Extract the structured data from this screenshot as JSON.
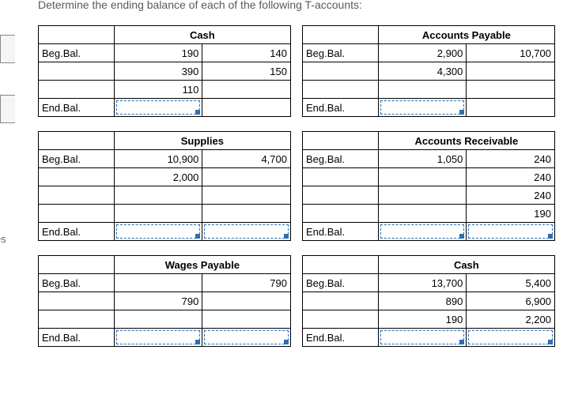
{
  "instruction_text": "Determine the ending balance of each of the following T-accounts:",
  "side_label": "es",
  "colors": {
    "header_bg": "#4e95d9",
    "border": "#000000",
    "entry_border": "#2b6fb5"
  },
  "accounts": [
    {
      "title": "Cash",
      "col_widths": [
        "30%",
        "35%",
        "35%"
      ],
      "rows": [
        {
          "label": "Beg.Bal.",
          "debit": "190",
          "credit": "140",
          "entry": []
        },
        {
          "label": "",
          "debit": "390",
          "credit": "150",
          "entry": []
        },
        {
          "label": "",
          "debit": "110",
          "credit": "",
          "entry": []
        },
        {
          "label": "End.Bal.",
          "debit": "",
          "credit": "",
          "entry": [
            "debit"
          ]
        }
      ]
    },
    {
      "title": "Accounts Payable",
      "col_widths": [
        "30%",
        "35%",
        "35%"
      ],
      "rows": [
        {
          "label": "Beg.Bal.",
          "debit": "2,900",
          "credit": "10,700",
          "entry": []
        },
        {
          "label": "",
          "debit": "4,300",
          "credit": "",
          "entry": []
        },
        {
          "label": "",
          "debit": "",
          "credit": "",
          "entry": []
        },
        {
          "label": "End.Bal.",
          "debit": "",
          "credit": "",
          "entry": [
            "debit"
          ]
        }
      ]
    },
    {
      "title": "Supplies",
      "col_widths": [
        "30%",
        "35%",
        "35%"
      ],
      "rows": [
        {
          "label": "Beg.Bal.",
          "debit": "10,900",
          "credit": "4,700",
          "entry": []
        },
        {
          "label": "",
          "debit": "2,000",
          "credit": "",
          "entry": []
        },
        {
          "label": "",
          "debit": "",
          "credit": "",
          "entry": []
        },
        {
          "label": "",
          "debit": "",
          "credit": "",
          "entry": []
        },
        {
          "label": "End.Bal.",
          "debit": "",
          "credit": "",
          "entry": [
            "debit",
            "credit"
          ]
        }
      ]
    },
    {
      "title": "Accounts Receivable",
      "col_widths": [
        "30%",
        "35%",
        "35%"
      ],
      "rows": [
        {
          "label": "Beg.Bal.",
          "debit": "1,050",
          "credit": "240",
          "entry": []
        },
        {
          "label": "",
          "debit": "",
          "credit": "240",
          "entry": []
        },
        {
          "label": "",
          "debit": "",
          "credit": "240",
          "entry": []
        },
        {
          "label": "",
          "debit": "",
          "credit": "190",
          "entry": []
        },
        {
          "label": "End.Bal.",
          "debit": "",
          "credit": "",
          "entry": [
            "debit",
            "credit"
          ]
        }
      ]
    },
    {
      "title": "Wages Payable",
      "col_widths": [
        "30%",
        "35%",
        "35%"
      ],
      "rows": [
        {
          "label": "Beg.Bal.",
          "debit": "",
          "credit": "790",
          "entry": []
        },
        {
          "label": "",
          "debit": "790",
          "credit": "",
          "entry": []
        },
        {
          "label": "",
          "debit": "",
          "credit": "",
          "entry": []
        },
        {
          "label": "End.Bal.",
          "debit": "",
          "credit": "",
          "entry": [
            "debit",
            "credit"
          ]
        }
      ]
    },
    {
      "title": "Cash",
      "col_widths": [
        "30%",
        "35%",
        "35%"
      ],
      "rows": [
        {
          "label": "Beg.Bal.",
          "debit": "13,700",
          "credit": "5,400",
          "entry": []
        },
        {
          "label": "",
          "debit": "890",
          "credit": "6,900",
          "entry": []
        },
        {
          "label": "",
          "debit": "190",
          "credit": "2,200",
          "entry": []
        },
        {
          "label": "End.Bal.",
          "debit": "",
          "credit": "",
          "entry": [
            "debit",
            "credit"
          ]
        }
      ]
    }
  ]
}
